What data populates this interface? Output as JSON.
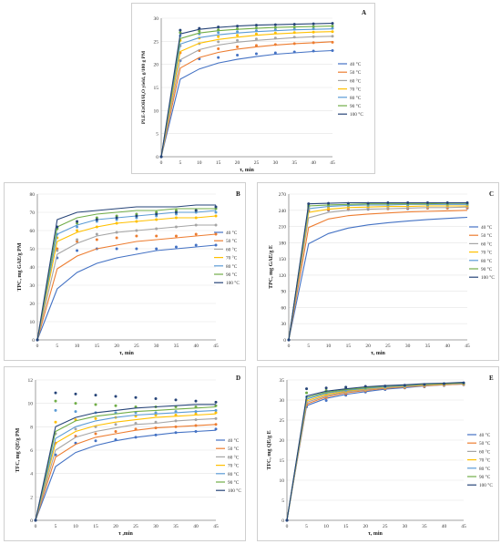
{
  "legend_labels": [
    "40 °C",
    "50 °C",
    "60 °C",
    "70 °C",
    "80 °C",
    "90 °C",
    "100 °C"
  ],
  "series_colors": [
    "#4472c4",
    "#ed7d31",
    "#a5a5a5",
    "#ffc000",
    "#5b9bd5",
    "#70ad47",
    "#264478"
  ],
  "chart_data": [
    {
      "id": "A",
      "type": "line",
      "panel_label": "A",
      "xlabel": "τ, min",
      "ylabel": "PLE-EtOH/H₂O yield, g/100 g PM",
      "xlim": [
        0,
        45
      ],
      "ylim": [
        0,
        30
      ],
      "xticks": [
        0,
        5,
        10,
        15,
        20,
        25,
        30,
        35,
        40,
        45
      ],
      "yticks": [
        0,
        5,
        10,
        15,
        20,
        25,
        30
      ],
      "x": [
        0,
        5,
        10,
        15,
        20,
        25,
        30,
        35,
        40,
        45
      ],
      "series": [
        {
          "name": "40 °C",
          "fit": [
            0,
            16.8,
            19.0,
            20.3,
            21.1,
            21.7,
            22.2,
            22.5,
            22.8,
            23.0
          ],
          "points": [
            0,
            20.8,
            21.2,
            21.5,
            22.0,
            22.3,
            22.5,
            22.7,
            22.9,
            23.0
          ]
        },
        {
          "name": "50 °C",
          "fit": [
            0,
            19.2,
            21.5,
            22.6,
            23.3,
            23.8,
            24.2,
            24.5,
            24.7,
            24.9
          ],
          "points": [
            0,
            22.5,
            23.0,
            23.4,
            23.8,
            24.1,
            24.3,
            24.5,
            24.7,
            24.8
          ]
        },
        {
          "name": "60 °C",
          "fit": [
            0,
            21.0,
            23.2,
            24.2,
            24.8,
            25.2,
            25.5,
            25.8,
            26.0,
            26.1
          ],
          "points": [
            0,
            24.0,
            24.5,
            24.9,
            25.2,
            25.5,
            25.7,
            25.9,
            26.0,
            26.1
          ]
        },
        {
          "name": "70 °C",
          "fit": [
            0,
            22.8,
            24.6,
            25.4,
            25.9,
            26.3,
            26.6,
            26.8,
            27.0,
            27.1
          ],
          "points": [
            0,
            25.2,
            25.7,
            26.0,
            26.3,
            26.6,
            26.8,
            26.9,
            27.0,
            27.1
          ]
        },
        {
          "name": "80 °C",
          "fit": [
            0,
            24.4,
            25.8,
            26.4,
            26.8,
            27.1,
            27.3,
            27.5,
            27.6,
            27.7
          ],
          "points": [
            0,
            26.2,
            26.6,
            26.9,
            27.1,
            27.3,
            27.5,
            27.6,
            27.7,
            27.8
          ]
        },
        {
          "name": "90 °C",
          "fit": [
            0,
            25.6,
            26.8,
            27.3,
            27.6,
            27.8,
            28.0,
            28.1,
            28.2,
            28.3
          ],
          "points": [
            0,
            26.9,
            27.2,
            27.5,
            27.7,
            27.9,
            28.0,
            28.1,
            28.2,
            28.3
          ]
        },
        {
          "name": "100 °C",
          "fit": [
            0,
            26.6,
            27.6,
            28.0,
            28.3,
            28.5,
            28.6,
            28.7,
            28.8,
            28.9
          ],
          "points": [
            0,
            27.4,
            27.8,
            28.1,
            28.3,
            28.5,
            28.6,
            28.7,
            28.8,
            28.9
          ]
        }
      ]
    },
    {
      "id": "B",
      "type": "line",
      "panel_label": "B",
      "xlabel": "τ, min",
      "ylabel": "TPC, mg GAE/g PM",
      "xlim": [
        0,
        45
      ],
      "ylim": [
        0,
        80
      ],
      "xticks": [
        0,
        5,
        10,
        15,
        20,
        25,
        30,
        35,
        40,
        45
      ],
      "yticks": [
        0,
        10,
        20,
        30,
        40,
        50,
        60,
        70,
        80
      ],
      "x": [
        0,
        5,
        10,
        15,
        20,
        25,
        30,
        35,
        40,
        45
      ],
      "series": [
        {
          "name": "40 °C",
          "fit": [
            0,
            28,
            37,
            42,
            45,
            47,
            49,
            50,
            51,
            52
          ],
          "points": [
            0,
            45,
            49,
            50,
            50,
            50,
            50,
            51,
            52,
            52
          ]
        },
        {
          "name": "50 °C",
          "fit": [
            0,
            39,
            46,
            50,
            52,
            54,
            55,
            56,
            57,
            58
          ],
          "points": [
            0,
            50,
            54,
            55,
            56,
            57,
            57,
            57,
            58,
            58
          ]
        },
        {
          "name": "60 °C",
          "fit": [
            0,
            47,
            53,
            57,
            59,
            60,
            61,
            62,
            63,
            63
          ],
          "points": [
            0,
            49,
            55,
            58,
            59,
            60,
            61,
            62,
            63,
            63
          ]
        },
        {
          "name": "70 °C",
          "fit": [
            0,
            54,
            59,
            62,
            64,
            65,
            66,
            67,
            67,
            68
          ],
          "points": [
            0,
            56,
            60,
            62,
            64,
            65,
            66,
            67,
            67,
            68
          ]
        },
        {
          "name": "80 °C",
          "fit": [
            0,
            58,
            63,
            66,
            67,
            68,
            69,
            70,
            70,
            71
          ],
          "points": [
            0,
            58,
            62,
            65,
            66,
            67,
            68,
            69,
            70,
            70
          ]
        },
        {
          "name": "90 °C",
          "fit": [
            0,
            62,
            67,
            69,
            70,
            71,
            71,
            72,
            72,
            72
          ],
          "points": [
            0,
            61,
            64,
            67,
            68,
            69,
            70,
            71,
            71,
            72
          ]
        },
        {
          "name": "100 °C",
          "fit": [
            0,
            66,
            70,
            71,
            72,
            73,
            73,
            73,
            74,
            74
          ],
          "points": [
            0,
            62,
            65,
            66,
            67,
            68,
            69,
            70,
            71,
            73
          ]
        }
      ]
    },
    {
      "id": "C",
      "type": "line",
      "panel_label": "C",
      "xlabel": "τ, min",
      "ylabel": "TPC, mg GAE/g E",
      "xlim": [
        0,
        45
      ],
      "ylim": [
        0,
        270
      ],
      "xticks": [
        0,
        5,
        10,
        15,
        20,
        25,
        30,
        35,
        40,
        45
      ],
      "yticks": [
        0,
        30,
        60,
        90,
        120,
        150,
        180,
        210,
        240,
        270
      ],
      "x": [
        0,
        5,
        10,
        15,
        20,
        25,
        30,
        35,
        40,
        45
      ],
      "series": [
        {
          "name": "40 °C",
          "fit": [
            0,
            178,
            197,
            207,
            213,
            217,
            220,
            223,
            225,
            227
          ],
          "points": [
            0,
            238,
            240,
            241,
            242,
            243,
            243,
            244,
            244,
            244
          ]
        },
        {
          "name": "50 °C",
          "fit": [
            0,
            208,
            224,
            230,
            233,
            235,
            237,
            238,
            239,
            240
          ],
          "points": [
            0,
            240,
            241,
            242,
            243,
            243,
            244,
            244,
            244,
            245
          ]
        },
        {
          "name": "60 °C",
          "fit": [
            0,
            226,
            236,
            240,
            242,
            243,
            244,
            245,
            245,
            246
          ],
          "points": [
            0,
            243,
            244,
            245,
            245,
            246,
            246,
            246,
            247,
            247
          ]
        },
        {
          "name": "70 °C",
          "fit": [
            0,
            236,
            242,
            245,
            246,
            247,
            247,
            248,
            248,
            248
          ],
          "points": [
            0,
            245,
            246,
            247,
            247,
            248,
            248,
            248,
            249,
            249
          ]
        },
        {
          "name": "80 °C",
          "fit": [
            0,
            243,
            247,
            249,
            250,
            250,
            251,
            251,
            251,
            251
          ],
          "points": [
            0,
            247,
            248,
            249,
            249,
            250,
            250,
            250,
            251,
            251
          ]
        },
        {
          "name": "90 °C",
          "fit": [
            0,
            248,
            250,
            251,
            252,
            252,
            252,
            252,
            253,
            253
          ],
          "points": [
            0,
            249,
            250,
            251,
            251,
            252,
            252,
            252,
            252,
            253
          ]
        },
        {
          "name": "100 °C",
          "fit": [
            0,
            252,
            253,
            254,
            254,
            254,
            254,
            254,
            254,
            254
          ],
          "points": [
            0,
            252,
            253,
            253,
            253,
            254,
            254,
            254,
            254,
            254
          ]
        }
      ]
    },
    {
      "id": "D",
      "type": "line",
      "panel_label": "D",
      "xlabel": "τ ,min",
      "ylabel": "TFC, mg QE/g PM",
      "xlim": [
        0,
        45
      ],
      "ylim": [
        0,
        12
      ],
      "xticks": [
        0,
        5,
        10,
        15,
        20,
        25,
        30,
        35,
        40,
        45
      ],
      "yticks": [
        0,
        2,
        4,
        6,
        8,
        10,
        12
      ],
      "x": [
        0,
        5,
        10,
        15,
        20,
        25,
        30,
        35,
        40,
        45
      ],
      "series": [
        {
          "name": "40 °C",
          "fit": [
            0,
            4.6,
            5.8,
            6.4,
            6.8,
            7.1,
            7.3,
            7.5,
            7.6,
            7.7
          ],
          "points": [
            0,
            5.6,
            6.6,
            6.8,
            6.9,
            7.1,
            7.3,
            7.5,
            7.6,
            7.8
          ]
        },
        {
          "name": "50 °C",
          "fit": [
            0,
            5.4,
            6.5,
            7.1,
            7.4,
            7.7,
            7.9,
            8.0,
            8.1,
            8.2
          ],
          "points": [
            0,
            6.6,
            7.2,
            7.4,
            7.6,
            7.8,
            7.9,
            8.0,
            8.1,
            8.2
          ]
        },
        {
          "name": "60 °C",
          "fit": [
            0,
            6.0,
            7.1,
            7.6,
            7.9,
            8.2,
            8.3,
            8.5,
            8.6,
            8.7
          ],
          "points": [
            0,
            7.4,
            7.8,
            8.0,
            8.2,
            8.3,
            8.4,
            8.5,
            8.6,
            8.7
          ]
        },
        {
          "name": "70 °C",
          "fit": [
            0,
            6.6,
            7.6,
            8.1,
            8.4,
            8.6,
            8.8,
            8.9,
            9.0,
            9.1
          ],
          "points": [
            0,
            8.4,
            8.6,
            8.7,
            8.8,
            8.9,
            9.0,
            9.0,
            9.1,
            9.2
          ]
        },
        {
          "name": "80 °C",
          "fit": [
            0,
            7.0,
            8.0,
            8.5,
            8.8,
            9.0,
            9.1,
            9.2,
            9.3,
            9.4
          ],
          "points": [
            0,
            9.4,
            9.3,
            9.2,
            9.2,
            9.2,
            9.2,
            9.3,
            9.3,
            9.4
          ]
        },
        {
          "name": "90 °C",
          "fit": [
            0,
            7.6,
            8.5,
            8.9,
            9.1,
            9.3,
            9.4,
            9.5,
            9.6,
            9.7
          ],
          "points": [
            0,
            10.2,
            10.0,
            9.9,
            9.8,
            9.7,
            9.7,
            9.7,
            9.7,
            9.8
          ]
        },
        {
          "name": "100 °C",
          "fit": [
            0,
            8.0,
            8.8,
            9.2,
            9.4,
            9.6,
            9.7,
            9.8,
            9.9,
            9.9
          ],
          "points": [
            0,
            10.9,
            10.8,
            10.7,
            10.6,
            10.5,
            10.4,
            10.3,
            10.2,
            10.1
          ]
        }
      ]
    },
    {
      "id": "E",
      "type": "line",
      "panel_label": "E",
      "xlabel": "τ, min",
      "ylabel": "TFC, mg QE/g E",
      "xlim": [
        0,
        45
      ],
      "ylim": [
        0,
        35
      ],
      "xticks": [
        0,
        5,
        10,
        15,
        20,
        25,
        30,
        35,
        40,
        45
      ],
      "yticks": [
        0,
        5,
        10,
        15,
        20,
        25,
        30,
        35
      ],
      "x": [
        0,
        5,
        10,
        15,
        20,
        25,
        30,
        35,
        40,
        45
      ],
      "series": [
        {
          "name": "40 °C",
          "fit": [
            0,
            28.6,
            30.4,
            31.4,
            32.1,
            32.7,
            33.1,
            33.5,
            33.8,
            34.0
          ],
          "points": [
            0,
            28.3,
            29.9,
            31.2,
            32.0,
            32.6,
            33.0,
            33.3,
            33.6,
            33.8
          ]
        },
        {
          "name": "50 °C",
          "fit": [
            0,
            29.0,
            30.8,
            31.8,
            32.4,
            32.9,
            33.3,
            33.6,
            33.8,
            34.0
          ],
          "points": [
            0,
            28.8,
            30.6,
            31.6,
            32.3,
            32.8,
            33.1,
            33.4,
            33.7,
            33.9
          ]
        },
        {
          "name": "60 °C",
          "fit": [
            0,
            29.4,
            31.1,
            32.0,
            32.6,
            33.1,
            33.4,
            33.7,
            33.9,
            34.1
          ],
          "points": [
            0,
            29.4,
            31.0,
            31.9,
            32.5,
            33.0,
            33.3,
            33.6,
            33.8,
            34.0
          ]
        },
        {
          "name": "70 °C",
          "fit": [
            0,
            29.8,
            31.4,
            32.2,
            32.8,
            33.2,
            33.5,
            33.8,
            34.0,
            34.2
          ],
          "points": [
            0,
            30.0,
            31.4,
            32.2,
            32.7,
            33.1,
            33.4,
            33.7,
            33.9,
            34.1
          ]
        },
        {
          "name": "80 °C",
          "fit": [
            0,
            30.2,
            31.7,
            32.4,
            32.9,
            33.3,
            33.6,
            33.9,
            34.1,
            34.2
          ],
          "points": [
            0,
            30.8,
            31.8,
            32.4,
            32.9,
            33.2,
            33.5,
            33.8,
            34.0,
            34.2
          ]
        },
        {
          "name": "90 °C",
          "fit": [
            0,
            30.6,
            31.9,
            32.6,
            33.1,
            33.5,
            33.7,
            34.0,
            34.1,
            34.3
          ],
          "points": [
            0,
            31.8,
            32.4,
            32.8,
            33.1,
            33.4,
            33.6,
            33.9,
            34.1,
            34.2
          ]
        },
        {
          "name": "100 °C",
          "fit": [
            0,
            31.0,
            32.2,
            32.8,
            33.3,
            33.6,
            33.8,
            34.1,
            34.2,
            34.4
          ],
          "points": [
            0,
            32.8,
            33.0,
            33.2,
            33.4,
            33.5,
            33.7,
            33.9,
            34.1,
            34.3
          ]
        }
      ]
    }
  ]
}
